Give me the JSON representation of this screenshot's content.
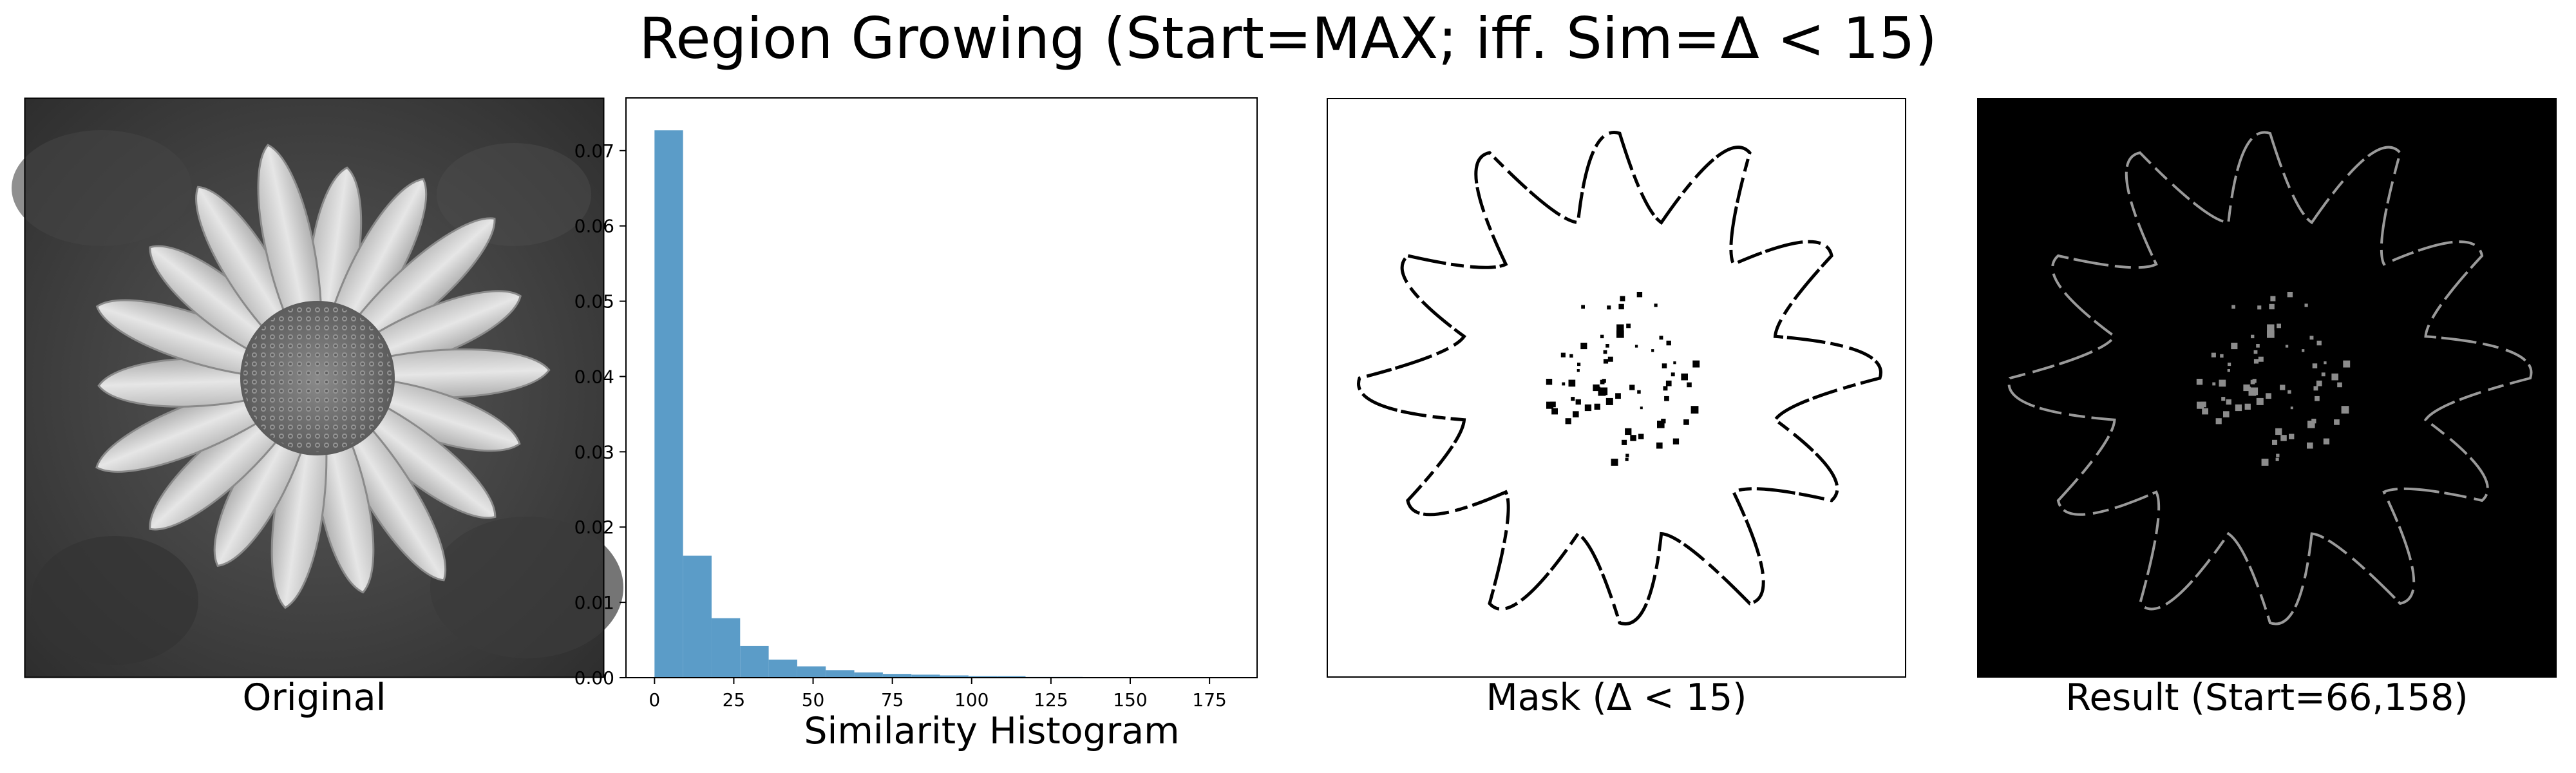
{
  "suptitle": "Region Growing (Start=MAX; iff. Sim=Δ < 15)",
  "panels": {
    "original": {
      "caption": "Original"
    },
    "histogram": {
      "caption": "Similarity Histogram"
    },
    "mask": {
      "caption": "Mask (Δ < 15)"
    },
    "result": {
      "caption": "Result (Start=66,158)"
    }
  },
  "chart_data": {
    "type": "bar",
    "title": "Similarity Histogram",
    "xlabel": "",
    "ylabel": "",
    "xlim": [
      -9,
      190
    ],
    "ylim": [
      0,
      0.077
    ],
    "x_ticks": [
      0,
      25,
      50,
      75,
      100,
      125,
      150,
      175
    ],
    "y_ticks": [
      0.0,
      0.01,
      0.02,
      0.03,
      0.04,
      0.05,
      0.06,
      0.07
    ],
    "y_tick_labels": [
      "0.00",
      "0.01",
      "0.02",
      "0.03",
      "0.04",
      "0.05",
      "0.06",
      "0.07"
    ],
    "bin_width": 9,
    "bin_starts": [
      0,
      9,
      18,
      27,
      36,
      45,
      54,
      63,
      72,
      81,
      90,
      99,
      108,
      117,
      126,
      135,
      144,
      153,
      162,
      171,
      180
    ],
    "values": [
      0.0727,
      0.0162,
      0.0079,
      0.0042,
      0.0024,
      0.0015,
      0.001,
      0.0007,
      0.0005,
      0.0004,
      0.0003,
      0.0002,
      0.0002,
      0.0001,
      0.0001,
      0.0,
      0.0,
      0.0,
      0.0,
      0.0,
      0.0
    ],
    "bar_color": "#5b9cc8",
    "grid": false
  }
}
